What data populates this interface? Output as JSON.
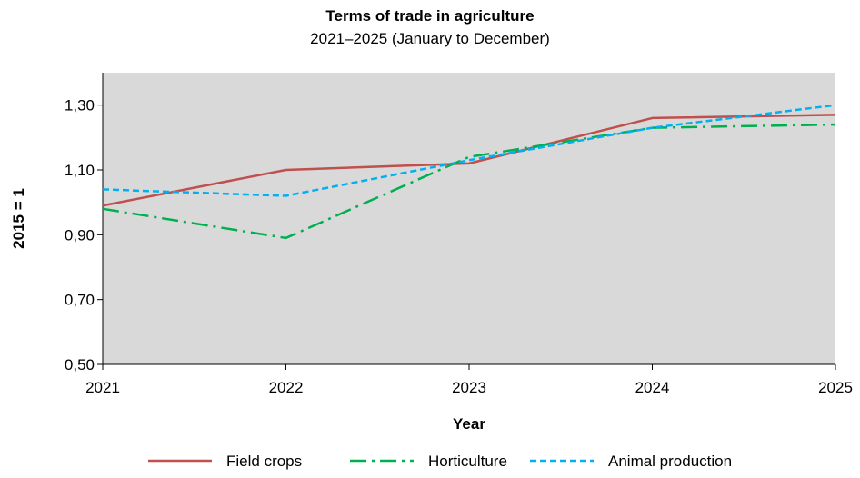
{
  "chart_data": {
    "type": "line",
    "title": "Terms of trade in agriculture",
    "subtitle": "2021–2025 (January to December)",
    "xlabel": "Year",
    "ylabel": "2015 = 1",
    "categories": [
      "2021",
      "2022",
      "2023",
      "2024",
      "2025"
    ],
    "ylim": [
      0.5,
      1.4
    ],
    "yticks": [
      "0,50",
      "0,70",
      "0,90",
      "1,10",
      "1,30"
    ],
    "ytick_values": [
      0.5,
      0.7,
      0.9,
      1.1,
      1.3
    ],
    "grid": false,
    "plot_background": "#d9d9d9",
    "legend_position": "bottom",
    "series": [
      {
        "name": "Field crops",
        "values": [
          0.99,
          1.1,
          1.12,
          1.26,
          1.27
        ],
        "color": "#c0504d",
        "style": "solid"
      },
      {
        "name": "Horticulture",
        "values": [
          0.98,
          0.89,
          1.14,
          1.23,
          1.24
        ],
        "color": "#00b050",
        "style": "dashdot"
      },
      {
        "name": "Animal production",
        "values": [
          1.04,
          1.02,
          1.13,
          1.23,
          1.3
        ],
        "color": "#00b0f0",
        "style": "dashed"
      }
    ]
  }
}
